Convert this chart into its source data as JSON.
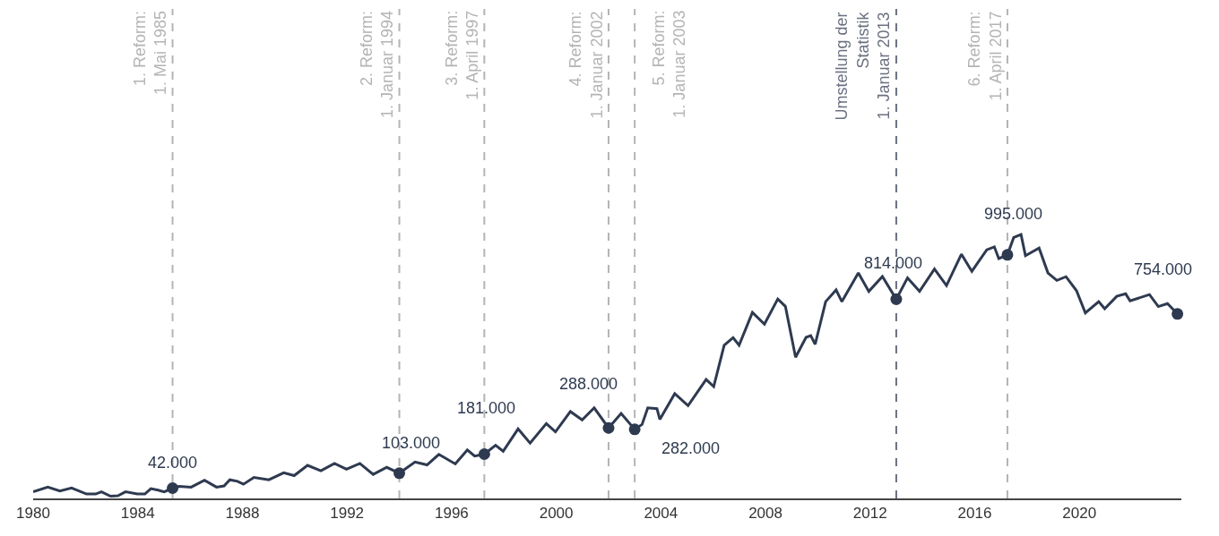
{
  "chart_data": {
    "type": "line",
    "xlim": [
      1980,
      2023.9
    ],
    "xticks": [
      1980,
      1984,
      1988,
      1992,
      1996,
      2000,
      2004,
      2008,
      2012,
      2016,
      2020
    ],
    "ylim": [
      0,
      2000000
    ],
    "tick_labels": "x",
    "grid": false,
    "series": [
      {
        "color": "#2e3a50",
        "marker": "none",
        "x": [
          1980.0,
          1980.56,
          1981.02,
          1981.47,
          1982.04,
          1982.39,
          1982.61,
          1982.96,
          1983.24,
          1983.53,
          1983.98,
          1984.27,
          1984.5,
          1984.78,
          1985.01,
          1985.33,
          1985.58,
          1986.04,
          1986.55,
          1987.01,
          1987.3,
          1987.52,
          1987.81,
          1988.04,
          1988.44,
          1989.01,
          1989.58,
          1989.98,
          1990.49,
          1991.0,
          1991.52,
          1991.98,
          1992.49,
          1993.0,
          1993.52,
          1994.0,
          1994.6,
          1995.06,
          1995.51,
          1996.14,
          1996.6,
          1996.88,
          1997.25,
          1997.68,
          1997.97,
          1998.54,
          1999.0,
          1999.62,
          1999.97,
          2000.54,
          2000.99,
          2001.45,
          2002.0,
          2002.48,
          2003.0,
          2003.28,
          2003.5,
          2003.85,
          2003.96,
          2004.53,
          2005.04,
          2005.73,
          2006.02,
          2006.42,
          2006.76,
          2006.99,
          2007.5,
          2007.96,
          2008.47,
          2008.76,
          2009.15,
          2009.55,
          2009.73,
          2009.9,
          2010.3,
          2010.7,
          2010.92,
          2011.55,
          2011.95,
          2012.47,
          2013.0,
          2013.43,
          2013.89,
          2014.46,
          2014.92,
          2015.49,
          2015.89,
          2016.46,
          2016.75,
          2016.92,
          2017.25,
          2017.49,
          2017.77,
          2017.94,
          2018.46,
          2018.8,
          2019.14,
          2019.49,
          2019.89,
          2020.23,
          2020.74,
          2020.97,
          2021.43,
          2021.77,
          2021.94,
          2022.68,
          2023.02,
          2023.37,
          2023.75
        ],
        "values": [
          27000,
          46000,
          30000,
          43000,
          18000,
          18000,
          27000,
          9000,
          11000,
          27000,
          18000,
          18000,
          40000,
          34000,
          27000,
          42000,
          49000,
          46000,
          74000,
          46000,
          51000,
          76000,
          70000,
          58000,
          86000,
          76000,
          105000,
          93000,
          135000,
          113000,
          143000,
          119000,
          143000,
          98000,
          127000,
          103000,
          149000,
          137000,
          180000,
          141000,
          198000,
          173000,
          181000,
          217000,
          193000,
          284000,
          226000,
          306000,
          272000,
          355000,
          321000,
          370000,
          288000,
          347000,
          282000,
          302000,
          370000,
          367000,
          323000,
          428000,
          379000,
          486000,
          457000,
          626000,
          657000,
          626000,
          760000,
          712000,
          815000,
          785000,
          577000,
          658000,
          665000,
          630000,
          804000,
          852000,
          804000,
          921000,
          846000,
          907000,
          814000,
          901000,
          846000,
          937000,
          870000,
          998000,
          928000,
          1016000,
          1028000,
          980000,
          995000,
          1066000,
          1078000,
          992000,
          1023000,
          921000,
          891000,
          906000,
          849000,
          758000,
          804000,
          775000,
          826000,
          836000,
          807000,
          833000,
          784000,
          796000,
          754000
        ]
      },
      {
        "type": "scatter",
        "color": "#2e3a50",
        "marker": "circle",
        "x": [
          1985.33,
          1994.0,
          1997.25,
          2002.0,
          2003.0,
          2013.0,
          2017.25,
          2023.75
        ],
        "values": [
          42000,
          103000,
          181000,
          288000,
          282000,
          814000,
          995000,
          754000
        ],
        "value_labels": [
          "42.000",
          "103.000",
          "181.000",
          "288.000",
          "282.000",
          "814.000",
          "995.000",
          "754.000"
        ]
      }
    ],
    "ref_lines": [
      {
        "axis": "x",
        "value": 1985.33,
        "label": "1. Reform:\n1. Mai 1985",
        "color": "#b4b4b4",
        "line_style": "dashed"
      },
      {
        "axis": "x",
        "value": 1994.0,
        "label": "2. Reform:\n1. Januar 1994",
        "color": "#b4b4b4",
        "line_style": "dashed"
      },
      {
        "axis": "x",
        "value": 1997.25,
        "label": "3. Reform:\n1. April 1997",
        "color": "#b4b4b4",
        "line_style": "dashed"
      },
      {
        "axis": "x",
        "value": 2002.0,
        "label": "4. Reform:\n1. Januar 2002",
        "color": "#b4b4b4",
        "line_style": "dashed"
      },
      {
        "axis": "x",
        "value": 2003.0,
        "label": "5. Reform:\n1. Januar 2003",
        "color": "#b4b4b4",
        "line_style": "dashed"
      },
      {
        "axis": "x",
        "value": 2013.0,
        "label": "Umstellung der\nStatistik\n1. Januar 2013",
        "color": "#6b7080",
        "line_style": "dashed"
      },
      {
        "axis": "x",
        "value": 2017.25,
        "label": "6. Reform:\n1. April 2017",
        "color": "#b4b4b4",
        "line_style": "dashed"
      }
    ]
  }
}
